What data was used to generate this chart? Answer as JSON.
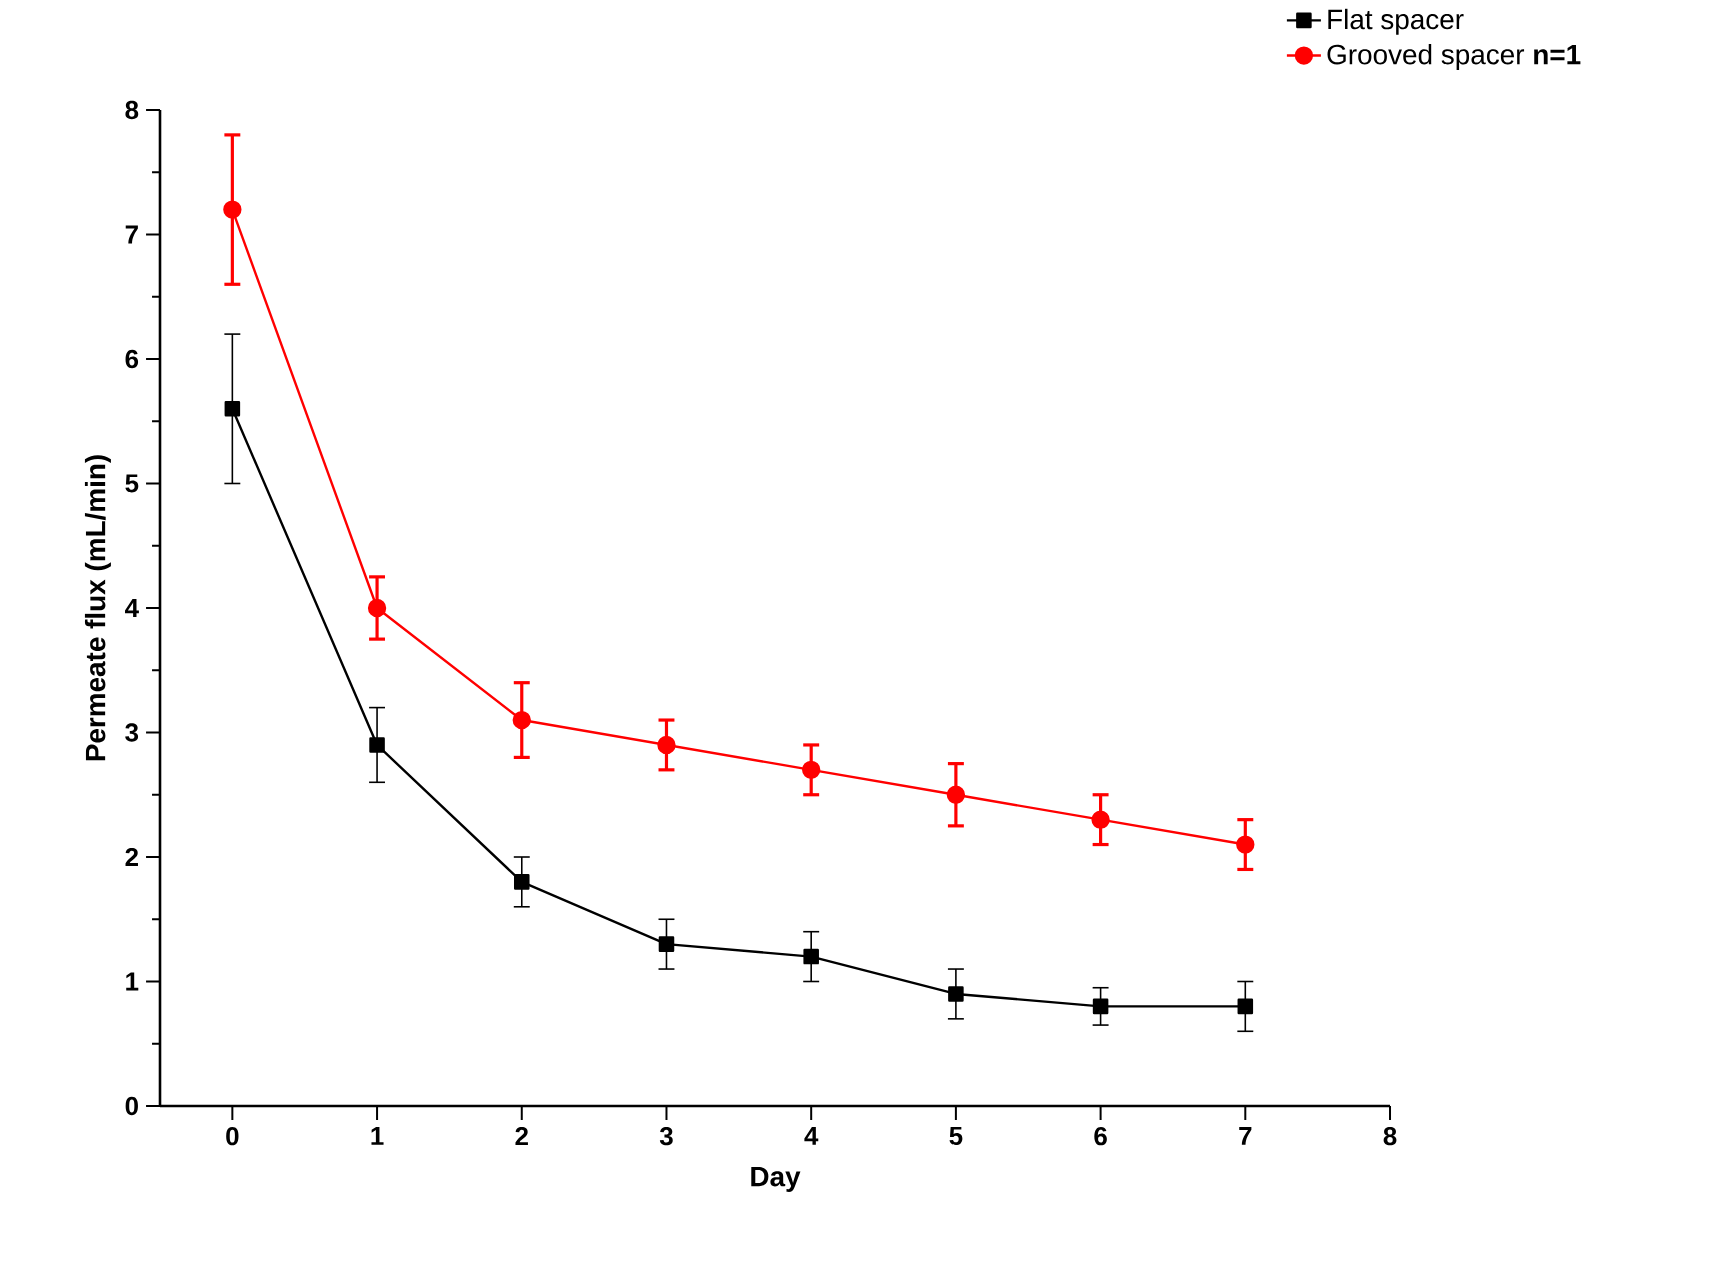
{
  "chart_data": {
    "type": "line",
    "xlabel": "Day",
    "ylabel": "Permeate flux (mL/min)",
    "x": [
      0,
      1,
      2,
      3,
      4,
      5,
      6,
      7
    ],
    "series": [
      {
        "name": "Flat spacer",
        "color": "#000000",
        "marker": "square",
        "values": [
          5.6,
          2.9,
          1.8,
          1.3,
          1.2,
          0.9,
          0.8,
          0.8
        ],
        "errors": [
          0.6,
          0.3,
          0.2,
          0.2,
          0.2,
          0.2,
          0.15,
          0.2
        ]
      },
      {
        "name": "Grooved spacer **n=1**",
        "color": "#ff0000",
        "marker": "circle",
        "values": [
          7.2,
          4.0,
          3.1,
          2.9,
          2.7,
          2.5,
          2.3,
          2.1
        ],
        "errors": [
          0.6,
          0.25,
          0.3,
          0.2,
          0.2,
          0.25,
          0.2,
          0.2
        ]
      }
    ],
    "xlim": [
      -0.5,
      8
    ],
    "xticks": [
      0,
      1,
      2,
      3,
      4,
      5,
      6,
      7,
      8
    ],
    "ylim": [
      0,
      8
    ],
    "yticks": [
      0,
      1,
      2,
      3,
      4,
      5,
      6,
      7,
      8
    ],
    "grid": false,
    "legend": "top right",
    "line_style": "solid"
  }
}
